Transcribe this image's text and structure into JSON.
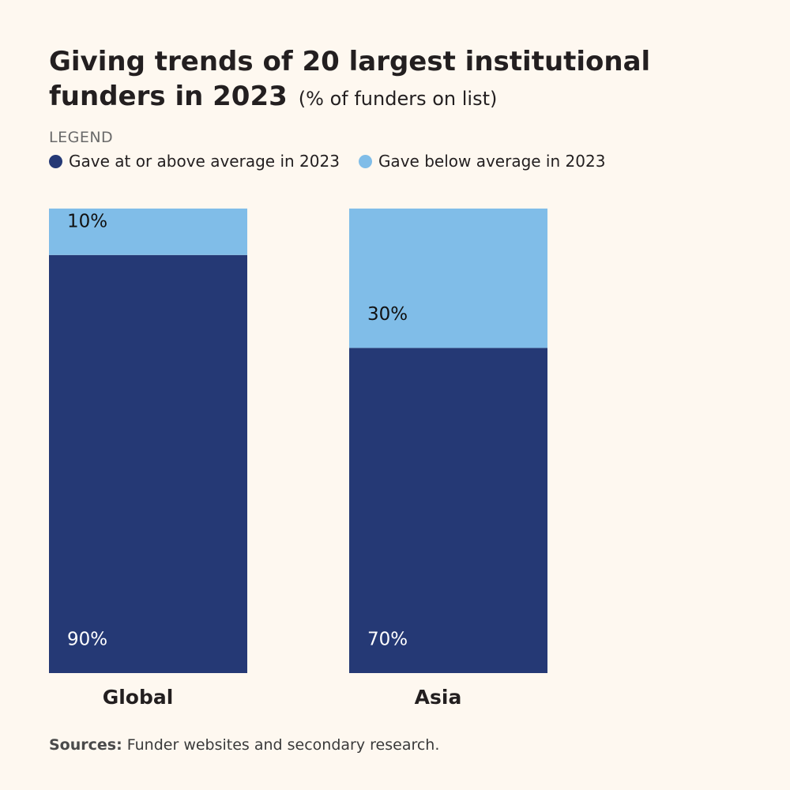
{
  "chart_data": {
    "type": "bar",
    "stacked": true,
    "title": "Giving trends of 20 largest institutional funders in 2023",
    "subtitle": "(% of funders on list)",
    "categories": [
      "Global",
      "Asia"
    ],
    "series": [
      {
        "name": "Gave at or above average in 2023",
        "color": "#253975",
        "label_color": "#ffffff",
        "values": [
          90,
          70
        ],
        "labels": [
          "90%",
          "70%"
        ]
      },
      {
        "name": "Gave below average in 2023",
        "color": "#80bde8",
        "label_color": "#111111",
        "values": [
          10,
          30
        ],
        "labels": [
          "10%",
          "30%"
        ]
      }
    ],
    "ylim": [
      0,
      100
    ],
    "xlabel": "",
    "ylabel": ""
  },
  "legend": {
    "heading": "LEGEND",
    "items": [
      {
        "label": "Gave at or above average in 2023",
        "color": "#253975"
      },
      {
        "label": "Gave below average in 2023",
        "color": "#80bde8"
      }
    ]
  },
  "footer": {
    "sources_label": "Sources:",
    "sources_text": " Funder websites and secondary research."
  }
}
